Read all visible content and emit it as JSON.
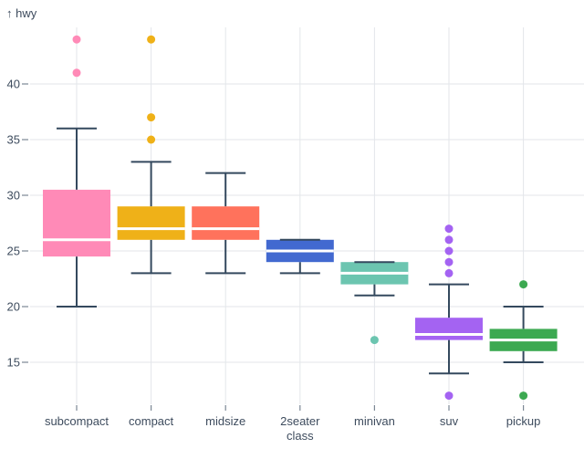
{
  "chart_data": {
    "type": "boxplot",
    "title": "",
    "ylabel": "hwy",
    "ylabel_display": "↑ hwy",
    "xlabel": "class",
    "grid": true,
    "legend": "none",
    "y_ticks": [
      15,
      20,
      25,
      30,
      35,
      40
    ],
    "ylim": [
      11,
      45.5
    ],
    "categories": [
      "subcompact",
      "compact",
      "midsize",
      "2seater",
      "minivan",
      "suv",
      "pickup"
    ],
    "series": [
      {
        "category": "subcompact",
        "color": "#ff8ab7",
        "whisker_low": 20,
        "q1": 24.5,
        "median": 26,
        "q3": 30.5,
        "whisker_high": 36,
        "outliers": [
          41,
          44
        ]
      },
      {
        "category": "compact",
        "color": "#efb118",
        "whisker_low": 23,
        "q1": 26,
        "median": 27,
        "q3": 29,
        "whisker_high": 33,
        "outliers": [
          35,
          37,
          44
        ]
      },
      {
        "category": "midsize",
        "color": "#ff725c",
        "whisker_low": 23,
        "q1": 26,
        "median": 27,
        "q3": 29,
        "whisker_high": 32,
        "outliers": []
      },
      {
        "category": "2seater",
        "color": "#4269d0",
        "whisker_low": 23,
        "q1": 24,
        "median": 25,
        "q3": 26,
        "whisker_high": 26,
        "outliers": []
      },
      {
        "category": "minivan",
        "color": "#6cc5b0",
        "whisker_low": 21,
        "q1": 22,
        "median": 23,
        "q3": 24,
        "whisker_high": 24,
        "outliers": [
          17
        ]
      },
      {
        "category": "suv",
        "color": "#a463f2",
        "whisker_low": 14,
        "q1": 17,
        "median": 17.5,
        "q3": 19,
        "whisker_high": 22,
        "outliers": [
          12,
          23,
          24,
          25,
          26,
          27
        ]
      },
      {
        "category": "pickup",
        "color": "#3ca951",
        "whisker_low": 15,
        "q1": 16,
        "median": 17,
        "q3": 18,
        "whisker_high": 20,
        "outliers": [
          12,
          22
        ]
      }
    ],
    "colors": {
      "whisker_stroke": "#34495e",
      "median_line": "#ffffff",
      "gridline": "#e3e6ea",
      "tick_mark": "#7b8794",
      "axis_text": "#3e4c5e",
      "background": "#ffffff"
    }
  }
}
